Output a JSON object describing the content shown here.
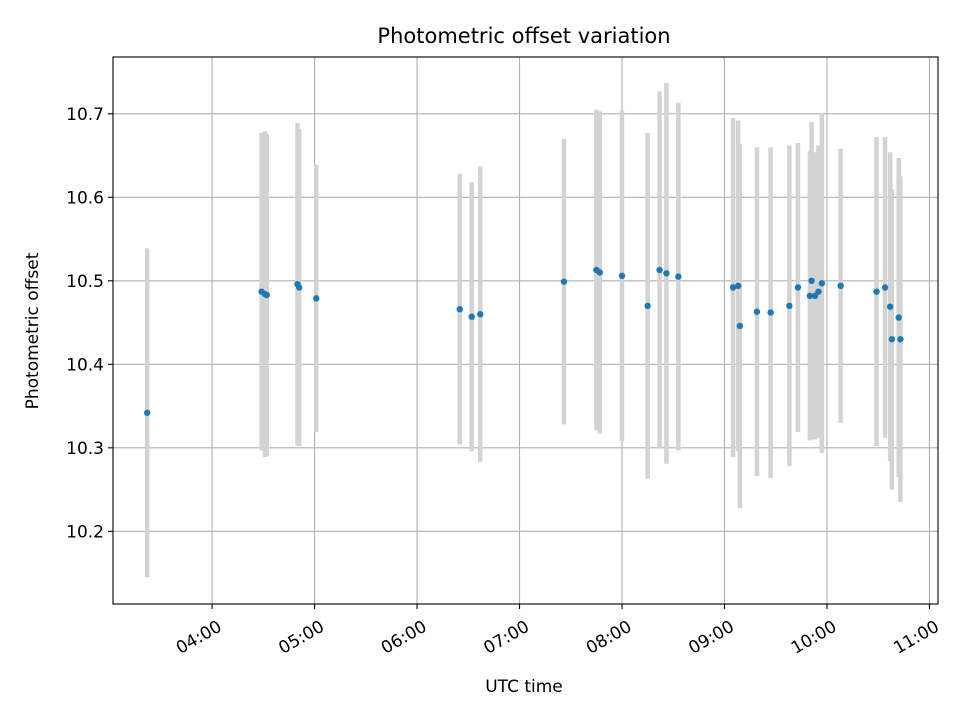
{
  "chart_data": {
    "type": "scatter",
    "title": "Photometric offset variation",
    "xlabel": "UTC time",
    "ylabel": "Photometric offset",
    "x_tick_labels": [
      "04:00",
      "05:00",
      "06:00",
      "07:00",
      "08:00",
      "09:00",
      "10:00",
      "11:00"
    ],
    "y_tick_labels": [
      "10.2",
      "10.3",
      "10.4",
      "10.5",
      "10.6",
      "10.7"
    ],
    "xlim": [
      "03:02",
      "11:05"
    ],
    "ylim": [
      10.113,
      10.768
    ],
    "grid": true,
    "colors": {
      "point": "#1f77b4",
      "errorbar": "#d3d3d3",
      "grid": "#b0b0b0"
    },
    "series": [
      {
        "points": [
          {
            "x": "03:22",
            "y": 10.342,
            "err": 0.197
          },
          {
            "x": "04:29",
            "y": 10.487,
            "err": 0.19
          },
          {
            "x": "04:31",
            "y": 10.484,
            "err": 0.195
          },
          {
            "x": "04:32",
            "y": 10.483,
            "err": 0.193
          },
          {
            "x": "04:50",
            "y": 10.496,
            "err": 0.193
          },
          {
            "x": "04:51",
            "y": 10.492,
            "err": 0.19
          },
          {
            "x": "05:01",
            "y": 10.479,
            "err": 0.16
          },
          {
            "x": "06:25",
            "y": 10.466,
            "err": 0.162
          },
          {
            "x": "06:32",
            "y": 10.457,
            "err": 0.161
          },
          {
            "x": "06:37",
            "y": 10.46,
            "err": 0.177
          },
          {
            "x": "07:26",
            "y": 10.499,
            "err": 0.171
          },
          {
            "x": "07:45",
            "y": 10.513,
            "err": 0.192
          },
          {
            "x": "07:47",
            "y": 10.51,
            "err": 0.193
          },
          {
            "x": "08:00",
            "y": 10.506,
            "err": 0.198
          },
          {
            "x": "08:15",
            "y": 10.47,
            "err": 0.207
          },
          {
            "x": "08:22",
            "y": 10.513,
            "err": 0.214
          },
          {
            "x": "08:26",
            "y": 10.509,
            "err": 0.228
          },
          {
            "x": "08:33",
            "y": 10.505,
            "err": 0.208
          },
          {
            "x": "09:05",
            "y": 10.492,
            "err": 0.203
          },
          {
            "x": "09:08",
            "y": 10.494,
            "err": 0.198
          },
          {
            "x": "09:09",
            "y": 10.446,
            "err": 0.218
          },
          {
            "x": "09:19",
            "y": 10.463,
            "err": 0.197
          },
          {
            "x": "09:27",
            "y": 10.462,
            "err": 0.198
          },
          {
            "x": "09:38",
            "y": 10.47,
            "err": 0.192
          },
          {
            "x": "09:43",
            "y": 10.492,
            "err": 0.173
          },
          {
            "x": "09:50",
            "y": 10.482,
            "err": 0.173
          },
          {
            "x": "09:51",
            "y": 10.5,
            "err": 0.19
          },
          {
            "x": "09:53",
            "y": 10.482,
            "err": 0.172
          },
          {
            "x": "09:55",
            "y": 10.487,
            "err": 0.175
          },
          {
            "x": "09:57",
            "y": 10.497,
            "err": 0.203
          },
          {
            "x": "10:08",
            "y": 10.494,
            "err": 0.164
          },
          {
            "x": "10:29",
            "y": 10.487,
            "err": 0.185
          },
          {
            "x": "10:34",
            "y": 10.492,
            "err": 0.18
          },
          {
            "x": "10:37",
            "y": 10.469,
            "err": 0.185
          },
          {
            "x": "10:38",
            "y": 10.43,
            "err": 0.18
          },
          {
            "x": "10:42",
            "y": 10.456,
            "err": 0.191
          },
          {
            "x": "10:43",
            "y": 10.43,
            "err": 0.195
          }
        ]
      }
    ]
  }
}
